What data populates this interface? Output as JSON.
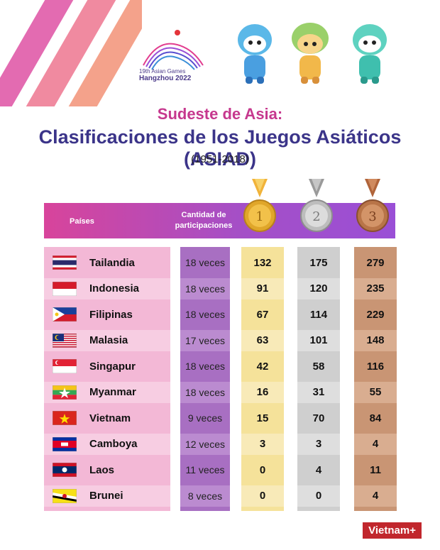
{
  "logo": {
    "line1": "19th Asian Games",
    "line2": "Hangzhou 2022"
  },
  "title": {
    "kicker": "Sudeste de Asia:",
    "main": "Clasificaciones de  los Juegos Asiáticos (ASIAD)",
    "years": "(1951-2018)"
  },
  "header": {
    "country": "Países",
    "participations_line1": "Cantidad de",
    "participations_line2": "participaciones"
  },
  "medals": [
    {
      "kind": "gold",
      "label": "1"
    },
    {
      "kind": "silver",
      "label": "2"
    },
    {
      "kind": "bronze",
      "label": "3"
    }
  ],
  "rows": [
    {
      "country": "Tailandia",
      "participations": "18 veces",
      "gold": "132",
      "silver": "175",
      "bronze": "279"
    },
    {
      "country": "Indonesia",
      "participations": "18 veces",
      "gold": "91",
      "silver": "120",
      "bronze": "235"
    },
    {
      "country": "Filipinas",
      "participations": "18 veces",
      "gold": "67",
      "silver": "114",
      "bronze": "229"
    },
    {
      "country": "Malasia",
      "participations": "17 veces",
      "gold": "63",
      "silver": "101",
      "bronze": "148"
    },
    {
      "country": "Singapur",
      "participations": "18 veces",
      "gold": "42",
      "silver": "58",
      "bronze": "116"
    },
    {
      "country": "Myanmar",
      "participations": "18 veces",
      "gold": "16",
      "silver": "31",
      "bronze": "55"
    },
    {
      "country": "Vietnam",
      "participations": "9 veces",
      "gold": "15",
      "silver": "70",
      "bronze": "84"
    },
    {
      "country": "Camboya",
      "participations": "12 veces",
      "gold": "3",
      "silver": "3",
      "bronze": "4"
    },
    {
      "country": "Laos",
      "participations": "11 veces",
      "gold": "0",
      "silver": "4",
      "bronze": "11"
    },
    {
      "country": "Brunei",
      "participations": "8 veces",
      "gold": "0",
      "silver": "0",
      "bronze": "4"
    }
  ],
  "colors": {
    "pink_row": "#f3b8d6",
    "pink_row_alt": "#f7cde2",
    "purple_row": "#a86fc2",
    "purple_row_alt": "#bb8bd0",
    "gold_row": "#f5e29a",
    "gold_row_alt": "#f8eab8",
    "silver_row": "#cfcfcf",
    "silver_row_alt": "#dedede",
    "bronze_row": "#c99574",
    "bronze_row_alt": "#d9ad90"
  },
  "brand": "Vietnam+"
}
